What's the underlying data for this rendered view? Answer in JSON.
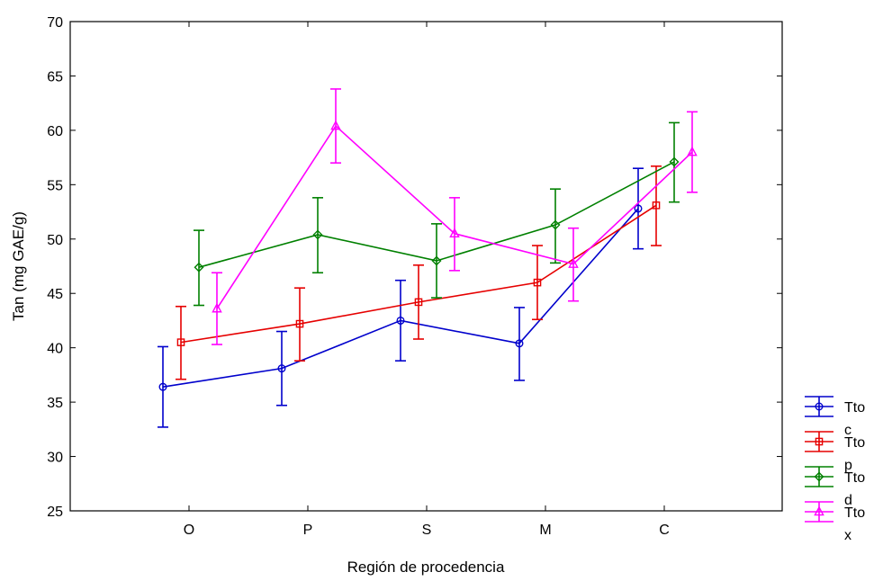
{
  "chart_data": {
    "type": "line",
    "xlabel": "Región de procedencia",
    "ylabel": "Tan (mg GAE/g)",
    "categories": [
      "O",
      "P",
      "S",
      "M",
      "C"
    ],
    "ylim": [
      25,
      70
    ],
    "yticks": [
      25,
      30,
      35,
      40,
      45,
      50,
      55,
      60,
      65,
      70
    ],
    "grid": false,
    "legend_position": "bottom-right, outside plot",
    "series": [
      {
        "name": "Tto c",
        "color": "#0000cc",
        "marker": "circle",
        "values": [
          36.4,
          38.1,
          42.5,
          40.4,
          52.8
        ],
        "lower": [
          32.7,
          34.7,
          38.8,
          37.0,
          49.1
        ],
        "upper": [
          40.1,
          41.5,
          46.2,
          43.7,
          56.5
        ]
      },
      {
        "name": "Tto p",
        "color": "#e60000",
        "marker": "square",
        "values": [
          40.5,
          42.2,
          44.2,
          46.0,
          53.1
        ],
        "lower": [
          37.1,
          38.8,
          40.8,
          42.6,
          49.4
        ],
        "upper": [
          43.8,
          45.5,
          47.6,
          49.4,
          56.7
        ]
      },
      {
        "name": "Tto d",
        "color": "#008000",
        "marker": "diamond",
        "values": [
          47.4,
          50.4,
          48.0,
          51.3,
          57.1
        ],
        "lower": [
          43.9,
          46.9,
          44.6,
          47.8,
          53.4
        ],
        "upper": [
          50.8,
          53.8,
          51.4,
          54.6,
          60.7
        ]
      },
      {
        "name": "Tto x",
        "color": "#ff00ff",
        "marker": "triangle",
        "values": [
          43.6,
          60.4,
          50.5,
          47.7,
          58.0
        ],
        "lower": [
          40.3,
          57.0,
          47.1,
          44.3,
          54.3
        ],
        "upper": [
          46.9,
          63.8,
          53.8,
          51.0,
          61.7
        ]
      }
    ],
    "legend": [
      {
        "line1": "Tto",
        "line2": "c"
      },
      {
        "line1": "Tto",
        "line2": "p"
      },
      {
        "line1": "Tto",
        "line2": "d"
      },
      {
        "line1": "Tto",
        "line2": "x"
      }
    ]
  }
}
